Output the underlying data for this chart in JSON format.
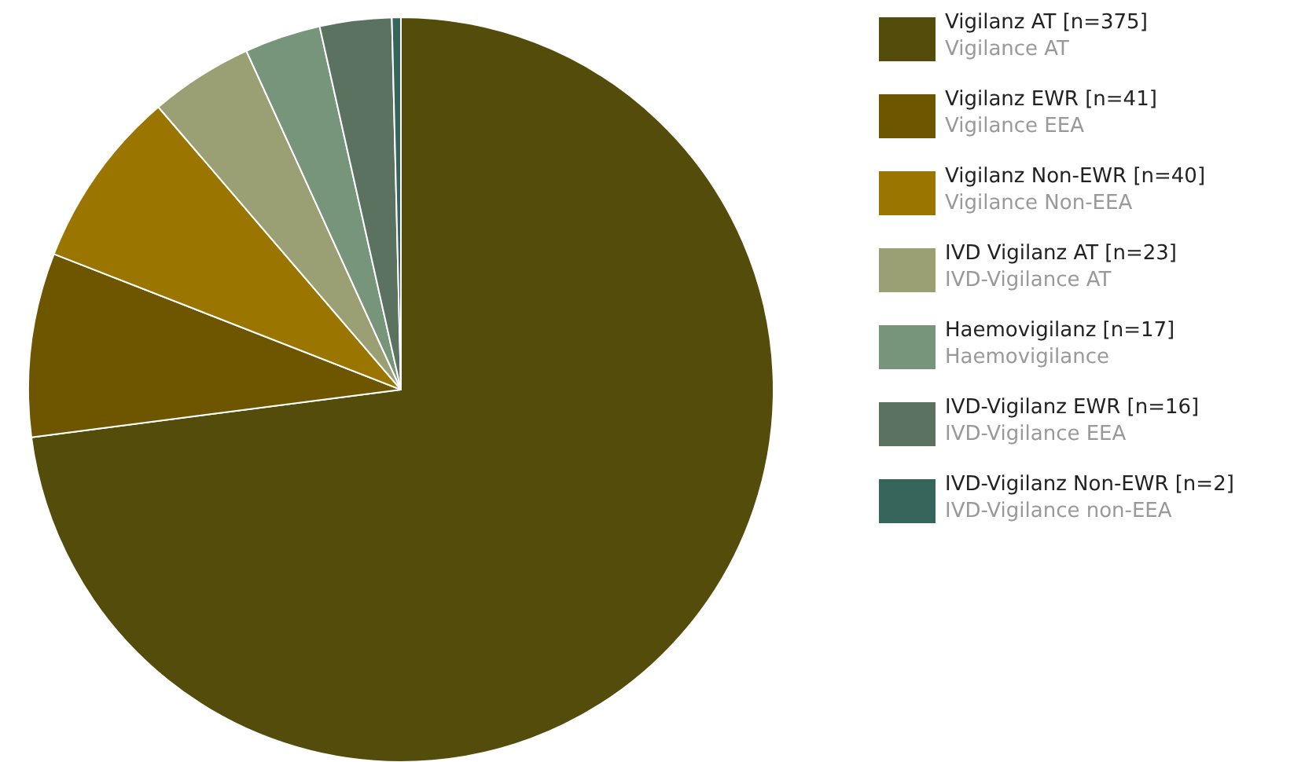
{
  "chart_data": {
    "type": "pie",
    "categories": [
      "Vigilanz AT [n=375]\nVigilance AT",
      "Vigilanz EWR [n=41]\nVigilance EEA",
      "Vigilanz Non-EWR [n=40]\nVigilance Non-EEA",
      "IVD Vigilanz AT [n=23]\nIVD-Vigilance AT",
      "Haemovigilanz [n=17]\nHaemovigilance",
      "IVD-Vigilanz EWR [n=16]\nIVD-Vigilance EEA",
      "IVD-Vigilanz Non-EWR [n=2]\nIVD-Vigilance non-EEA"
    ],
    "values": [
      375,
      41,
      40,
      23,
      17,
      16,
      2
    ],
    "colors": [
      "#544c0a",
      "#6e5500",
      "#9a7600",
      "#9a9f74",
      "#76957a",
      "#5b7260",
      "#36665b"
    ],
    "legend": "right"
  }
}
